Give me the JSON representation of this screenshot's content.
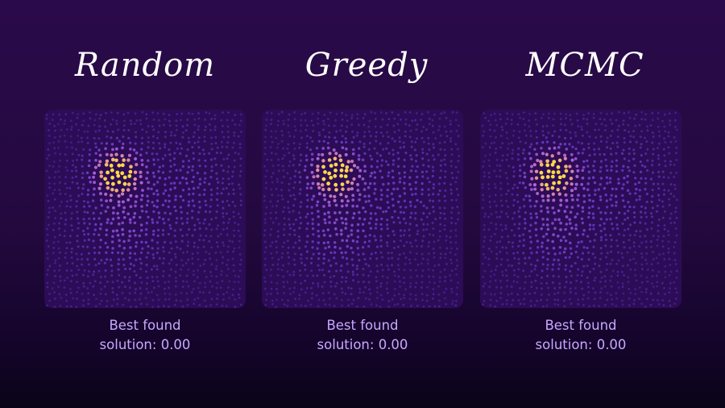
{
  "panels": [
    {
      "title": "Random",
      "caption_line1": "Best found",
      "caption_line2": "solution: 0.00"
    },
    {
      "title": "Greedy",
      "caption_line1": "Best found",
      "caption_line2": "solution: 0.00"
    },
    {
      "title": "MCMC",
      "caption_line1": "Best found",
      "caption_line2": "solution: 0.00"
    }
  ],
  "colors": {
    "background": "#24093f",
    "caption": "#c9a7ff",
    "hotspot": "#ffd84a",
    "dot": "#8a4dff"
  }
}
